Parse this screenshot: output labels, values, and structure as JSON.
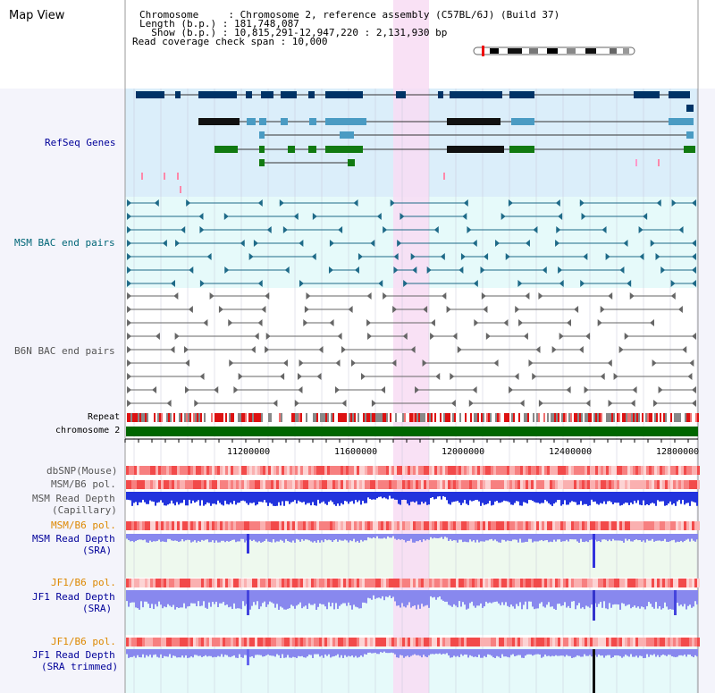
{
  "title": "Map View",
  "info": {
    "chromosome": "Chromosome     : Chromosome 2, reference assembly (C57BL/6J) (Build 37)",
    "length": "Length (b.p.) : 181,748,087",
    "show": "  Show (b.p.) : 10,815,291-12,947,220 : 2,131,930 bp",
    "span": "Read coverage check span : 10,000"
  },
  "tracks": {
    "refseq": "RefSeq Genes",
    "msm_bac": "MSM BAC end pairs",
    "b6n_bac": "B6N BAC end pairs",
    "repeat": "Repeat",
    "chromosome": "chromosome 2",
    "dbsnp": "dbSNP(Mouse)",
    "msm_b6_pol_1": "MSM/B6 pol.",
    "msm_depth_cap_1": "MSM Read Depth",
    "msm_depth_cap_2": "(Capillary)",
    "msm_b6_pol_2": "MSM/B6 pol.",
    "msm_depth_sra_1": "MSM Read Depth",
    "msm_depth_sra_2": "(SRA)",
    "jf1_b6_pol_1": "JF1/B6 pol.",
    "jf1_depth_sra_1": "JF1 Read Depth",
    "jf1_depth_sra_2": "(SRA)",
    "jf1_b6_pol_2": "JF1/B6 pol.",
    "jf1_depth_trim_1": "JF1 Read Depth",
    "jf1_depth_trim_2": "(SRA trimmed)"
  },
  "axis_ticks": [
    "11200000",
    "11600000",
    "12000000",
    "12400000",
    "12800000"
  ],
  "colors": {
    "refseq_bg": "#dbeefa",
    "bac_bg": "#e6fafa",
    "highlight": "#f8dcf3",
    "gene_dark": "#003366",
    "gene_mid": "#4a9bc3",
    "gene_green": "#117a11",
    "chromosome_bar": "#006600",
    "depth_blue": "#2233dd",
    "depth_light": "#8888ee",
    "label_blue": "#000099",
    "label_orange": "#dd8800",
    "label_teal": "#006677"
  }
}
